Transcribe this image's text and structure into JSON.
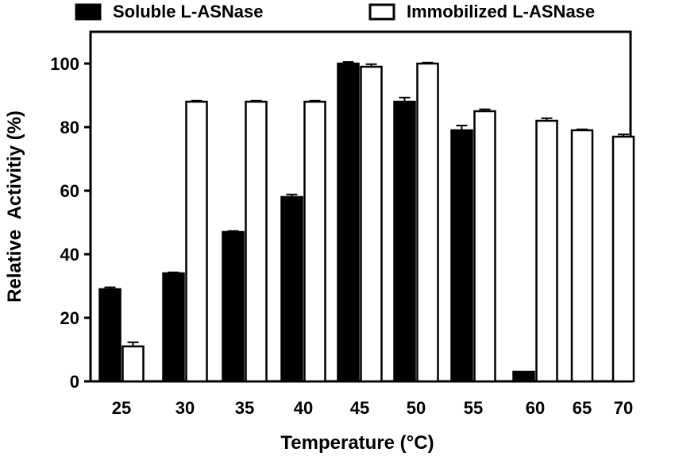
{
  "chart_data": {
    "type": "bar",
    "xlabel": "Temperature (°C)",
    "ylabel": "Relative  Activitiy (%)",
    "ylim": [
      0,
      110
    ],
    "yticks": [
      0,
      20,
      40,
      60,
      80,
      100
    ],
    "categories": [
      "25",
      "30",
      "35",
      "40",
      "45",
      "50",
      "55",
      "60",
      "65",
      "70"
    ],
    "series": [
      {
        "name": "Soluble L-ASNase",
        "fill": "#000000",
        "values": [
          29,
          34,
          47,
          58,
          100,
          88,
          79,
          3,
          null,
          null
        ],
        "errors": [
          0.6,
          0.3,
          0.3,
          0.8,
          0.5,
          1.3,
          1.5,
          0,
          null,
          null
        ]
      },
      {
        "name": "Immobilized L-ASNase",
        "fill": "#ffffff",
        "values": [
          11,
          88,
          88,
          88,
          99,
          100,
          85,
          82,
          79,
          77
        ],
        "errors": [
          1.3,
          0.3,
          0.3,
          0.3,
          0.8,
          0.3,
          0.6,
          0.8,
          0.3,
          0.7
        ]
      }
    ],
    "legend_position": "top",
    "grid": false
  }
}
